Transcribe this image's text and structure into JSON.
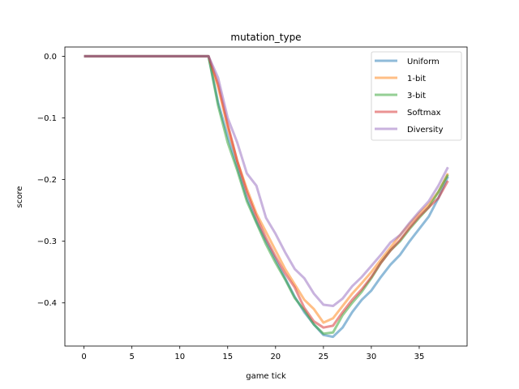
{
  "chart_data": {
    "type": "line",
    "title": "mutation_type",
    "xlabel": "game tick",
    "ylabel": "score",
    "xlim": [
      -2,
      40
    ],
    "ylim": [
      -0.47,
      0.015
    ],
    "xticks": [
      0,
      5,
      10,
      15,
      20,
      25,
      30,
      35
    ],
    "xtick_labels": [
      "0",
      "5",
      "10",
      "15",
      "20",
      "25",
      "30",
      "35"
    ],
    "yticks": [
      0.0,
      -0.1,
      -0.2,
      -0.3,
      -0.4
    ],
    "ytick_labels": [
      "0.0",
      "−0.1",
      "−0.2",
      "−0.3",
      "−0.4"
    ],
    "grid": false,
    "legend_position": "top-right",
    "x": [
      0,
      1,
      2,
      3,
      4,
      5,
      6,
      7,
      8,
      9,
      10,
      11,
      12,
      13,
      14,
      15,
      16,
      17,
      18,
      19,
      20,
      21,
      22,
      23,
      24,
      25,
      26,
      27,
      28,
      29,
      30,
      31,
      32,
      33,
      34,
      35,
      36,
      37,
      38
    ],
    "series": [
      {
        "name": "Uniform",
        "color": "#1f77b4",
        "values": [
          0,
          0,
          0,
          0,
          0,
          0,
          0,
          0,
          0,
          0,
          0,
          0,
          0,
          0,
          -0.075,
          -0.13,
          -0.18,
          -0.23,
          -0.268,
          -0.3,
          -0.33,
          -0.36,
          -0.39,
          -0.415,
          -0.435,
          -0.452,
          -0.455,
          -0.44,
          -0.415,
          -0.395,
          -0.38,
          -0.358,
          -0.338,
          -0.322,
          -0.3,
          -0.28,
          -0.26,
          -0.23,
          -0.195
        ]
      },
      {
        "name": "1-bit",
        "color": "#ff7f0e",
        "values": [
          0,
          0,
          0,
          0,
          0,
          0,
          0,
          0,
          0,
          0,
          0,
          0,
          0,
          0,
          -0.05,
          -0.115,
          -0.17,
          -0.215,
          -0.255,
          -0.285,
          -0.315,
          -0.345,
          -0.37,
          -0.395,
          -0.41,
          -0.432,
          -0.425,
          -0.405,
          -0.385,
          -0.368,
          -0.35,
          -0.33,
          -0.31,
          -0.29,
          -0.272,
          -0.255,
          -0.24,
          -0.22,
          -0.19
        ]
      },
      {
        "name": "3-bit",
        "color": "#2ca02c",
        "values": [
          0,
          0,
          0,
          0,
          0,
          0,
          0,
          0,
          0,
          0,
          0,
          0,
          0,
          0,
          -0.08,
          -0.14,
          -0.185,
          -0.235,
          -0.27,
          -0.305,
          -0.335,
          -0.362,
          -0.392,
          -0.412,
          -0.435,
          -0.45,
          -0.448,
          -0.42,
          -0.4,
          -0.382,
          -0.36,
          -0.335,
          -0.315,
          -0.3,
          -0.28,
          -0.262,
          -0.245,
          -0.22,
          -0.192
        ]
      },
      {
        "name": "Softmax",
        "color": "#d62728",
        "values": [
          0,
          0,
          0,
          0,
          0,
          0,
          0,
          0,
          0,
          0,
          0,
          0,
          0,
          0,
          -0.045,
          -0.11,
          -0.17,
          -0.22,
          -0.26,
          -0.295,
          -0.325,
          -0.352,
          -0.375,
          -0.408,
          -0.43,
          -0.44,
          -0.437,
          -0.415,
          -0.395,
          -0.378,
          -0.358,
          -0.335,
          -0.315,
          -0.298,
          -0.278,
          -0.26,
          -0.245,
          -0.23,
          -0.202
        ]
      },
      {
        "name": "Diversity",
        "color": "#9467bd",
        "values": [
          0,
          0,
          0,
          0,
          0,
          0,
          0,
          0,
          0,
          0,
          0,
          0,
          0,
          0,
          -0.035,
          -0.1,
          -0.14,
          -0.19,
          -0.21,
          -0.262,
          -0.288,
          -0.318,
          -0.345,
          -0.36,
          -0.385,
          -0.403,
          -0.405,
          -0.393,
          -0.373,
          -0.358,
          -0.34,
          -0.322,
          -0.302,
          -0.29,
          -0.27,
          -0.252,
          -0.235,
          -0.21,
          -0.18
        ]
      }
    ]
  }
}
